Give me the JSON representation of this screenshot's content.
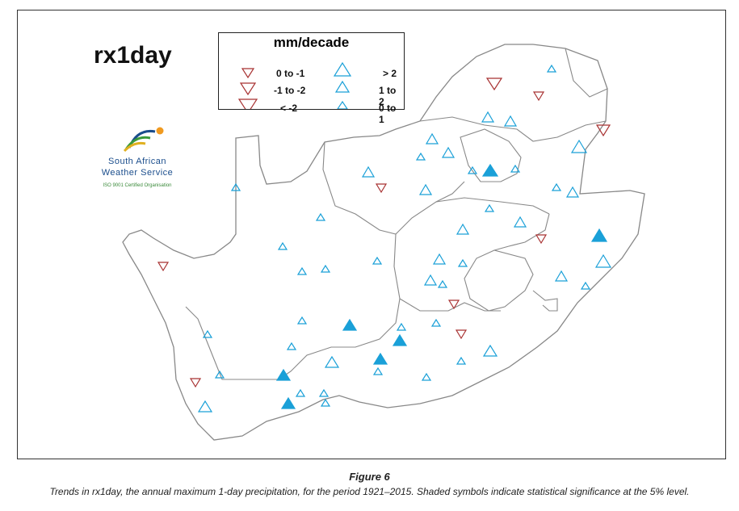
{
  "map": {
    "title": "rx1day",
    "legend": {
      "title": "mm/decade",
      "entries": [
        {
          "label": "0 to -1",
          "direction": "down",
          "size": "small"
        },
        {
          "label": "-1 to -2",
          "direction": "down",
          "size": "medium"
        },
        {
          "label": "< -2",
          "direction": "down",
          "size": "large"
        },
        {
          "label": "> 2",
          "direction": "up",
          "size": "large"
        },
        {
          "label": "1 to 2",
          "direction": "up",
          "size": "medium"
        },
        {
          "label": "0 to 1",
          "direction": "up",
          "size": "small"
        }
      ]
    },
    "colors": {
      "positive": "#1aa0d8",
      "negative": "#a83232",
      "boundary": "#888888"
    }
  },
  "logo": {
    "line1": "South African",
    "line2": "Weather Service",
    "cert": "ISO 9001 Certified Organisation"
  },
  "figure": {
    "number": "Figure 6",
    "caption": "Trends in rx1day, the annual maximum 1-day precipitation, for the period 1921–2015. Shaded symbols indicate statistical significance at the 5% level."
  }
}
